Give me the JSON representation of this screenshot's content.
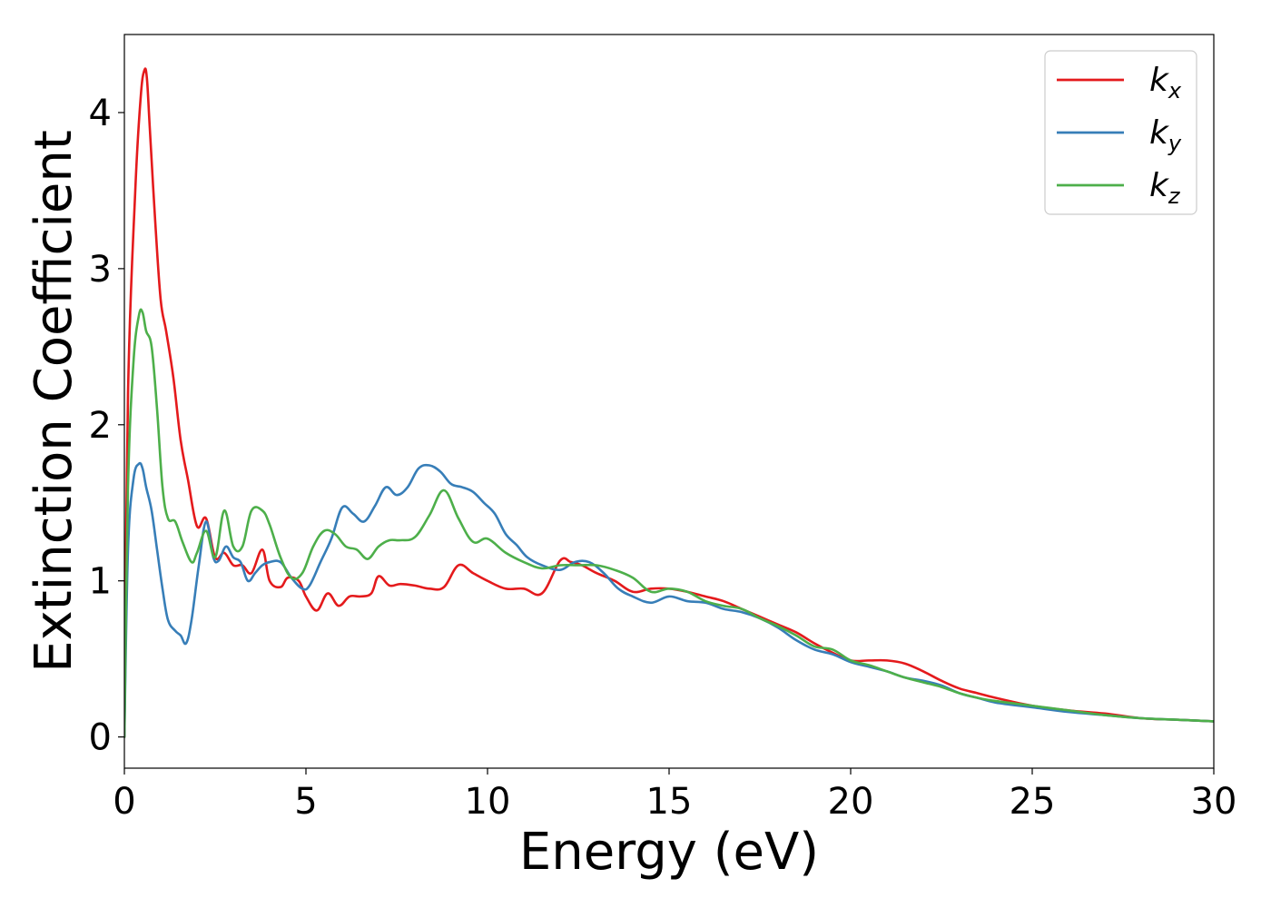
{
  "chart_data": {
    "type": "line",
    "xlabel": "Energy (eV)",
    "ylabel": "Extinction Coefficient",
    "xlim": [
      0,
      30
    ],
    "ylim": [
      -0.2,
      4.5
    ],
    "xticks": [
      "0",
      "5",
      "10",
      "15",
      "20",
      "25",
      "30"
    ],
    "yticks": [
      "0",
      "1",
      "2",
      "3",
      "4"
    ],
    "grid": false,
    "legend_position": "top-right",
    "series": [
      {
        "name": "k",
        "subscript": "x",
        "color": "#e41a1c",
        "x": [
          0,
          0.1,
          0.3,
          0.45,
          0.55,
          0.62,
          0.7,
          0.85,
          1.0,
          1.15,
          1.35,
          1.55,
          1.75,
          2.0,
          2.25,
          2.5,
          2.75,
          3.0,
          3.25,
          3.5,
          3.8,
          4.0,
          4.3,
          4.5,
          4.8,
          5.0,
          5.3,
          5.6,
          5.9,
          6.2,
          6.5,
          6.8,
          7.0,
          7.3,
          7.6,
          8.0,
          8.4,
          8.8,
          9.2,
          9.6,
          10.0,
          10.5,
          11.0,
          11.5,
          12.0,
          12.3,
          12.6,
          13.0,
          13.5,
          14.0,
          14.5,
          15.0,
          15.5,
          16.0,
          16.5,
          17.0,
          17.5,
          18.0,
          18.5,
          19.0,
          19.5,
          20.0,
          20.5,
          21.0,
          21.5,
          22.0,
          22.5,
          23.0,
          23.5,
          24.0,
          25.0,
          26.0,
          27.0,
          28.0,
          29.0,
          30.0
        ],
        "y": [
          0,
          2.2,
          3.5,
          4.1,
          4.27,
          4.22,
          3.9,
          3.3,
          2.8,
          2.6,
          2.3,
          1.9,
          1.65,
          1.35,
          1.4,
          1.15,
          1.18,
          1.1,
          1.1,
          1.05,
          1.2,
          1.0,
          0.96,
          1.02,
          1.0,
          0.9,
          0.81,
          0.92,
          0.84,
          0.9,
          0.9,
          0.92,
          1.03,
          0.97,
          0.98,
          0.97,
          0.95,
          0.96,
          1.1,
          1.05,
          1.0,
          0.95,
          0.95,
          0.92,
          1.13,
          1.12,
          1.1,
          1.05,
          1.0,
          0.93,
          0.95,
          0.95,
          0.93,
          0.9,
          0.87,
          0.82,
          0.77,
          0.72,
          0.67,
          0.6,
          0.54,
          0.49,
          0.49,
          0.49,
          0.47,
          0.42,
          0.36,
          0.31,
          0.28,
          0.25,
          0.2,
          0.17,
          0.15,
          0.12,
          0.11,
          0.1
        ]
      },
      {
        "name": "k",
        "subscript": "y",
        "color": "#377eb8",
        "x": [
          0,
          0.1,
          0.25,
          0.4,
          0.5,
          0.6,
          0.75,
          0.9,
          1.05,
          1.2,
          1.4,
          1.55,
          1.7,
          1.85,
          2.05,
          2.25,
          2.45,
          2.6,
          2.8,
          3.0,
          3.2,
          3.4,
          3.6,
          3.8,
          4.0,
          4.3,
          4.6,
          4.9,
          5.1,
          5.4,
          5.7,
          6.0,
          6.3,
          6.6,
          6.9,
          7.2,
          7.5,
          7.8,
          8.1,
          8.4,
          8.7,
          9.0,
          9.3,
          9.6,
          9.9,
          10.2,
          10.5,
          10.8,
          11.1,
          11.5,
          12.0,
          12.4,
          12.8,
          13.2,
          13.6,
          14.0,
          14.5,
          15.0,
          15.5,
          16.0,
          16.5,
          17.0,
          17.5,
          18.0,
          18.5,
          19.0,
          19.5,
          20.0,
          20.5,
          21.0,
          21.5,
          22.0,
          22.5,
          23.0,
          23.5,
          24.0,
          25.0,
          26.0,
          27.0,
          28.0,
          29.0,
          30.0
        ],
        "y": [
          0,
          1.2,
          1.65,
          1.75,
          1.72,
          1.6,
          1.45,
          1.2,
          0.95,
          0.75,
          0.68,
          0.65,
          0.6,
          0.75,
          1.1,
          1.38,
          1.15,
          1.13,
          1.22,
          1.15,
          1.12,
          1.0,
          1.05,
          1.1,
          1.12,
          1.12,
          1.02,
          0.95,
          0.97,
          1.12,
          1.27,
          1.47,
          1.43,
          1.38,
          1.48,
          1.6,
          1.55,
          1.6,
          1.72,
          1.74,
          1.7,
          1.62,
          1.6,
          1.57,
          1.5,
          1.43,
          1.3,
          1.23,
          1.15,
          1.1,
          1.07,
          1.12,
          1.12,
          1.05,
          0.95,
          0.9,
          0.86,
          0.9,
          0.87,
          0.86,
          0.82,
          0.8,
          0.76,
          0.7,
          0.62,
          0.56,
          0.53,
          0.48,
          0.45,
          0.42,
          0.38,
          0.36,
          0.33,
          0.28,
          0.25,
          0.22,
          0.19,
          0.16,
          0.14,
          0.12,
          0.11,
          0.1
        ]
      },
      {
        "name": "k",
        "subscript": "z",
        "color": "#4daf4a",
        "x": [
          0,
          0.1,
          0.25,
          0.4,
          0.5,
          0.6,
          0.75,
          0.9,
          1.05,
          1.2,
          1.4,
          1.6,
          1.85,
          2.0,
          2.25,
          2.5,
          2.75,
          3.0,
          3.25,
          3.5,
          3.8,
          4.0,
          4.3,
          4.6,
          4.9,
          5.2,
          5.5,
          5.8,
          6.1,
          6.4,
          6.7,
          7.0,
          7.3,
          7.6,
          8.0,
          8.4,
          8.8,
          9.2,
          9.6,
          10.0,
          10.5,
          11.0,
          11.5,
          12.0,
          12.5,
          13.0,
          13.5,
          14.0,
          14.5,
          15.0,
          15.5,
          16.0,
          16.5,
          17.0,
          17.5,
          18.0,
          18.5,
          19.0,
          19.5,
          20.0,
          20.5,
          21.0,
          21.5,
          22.0,
          22.5,
          23.0,
          23.5,
          24.0,
          25.0,
          26.0,
          27.0,
          28.0,
          29.0,
          30.0
        ],
        "y": [
          0,
          1.6,
          2.4,
          2.7,
          2.72,
          2.6,
          2.5,
          2.1,
          1.6,
          1.4,
          1.38,
          1.25,
          1.12,
          1.18,
          1.32,
          1.15,
          1.45,
          1.22,
          1.22,
          1.45,
          1.45,
          1.36,
          1.15,
          1.02,
          1.05,
          1.22,
          1.32,
          1.3,
          1.22,
          1.2,
          1.14,
          1.22,
          1.26,
          1.26,
          1.28,
          1.42,
          1.58,
          1.4,
          1.25,
          1.27,
          1.18,
          1.12,
          1.08,
          1.1,
          1.1,
          1.1,
          1.07,
          1.02,
          0.93,
          0.95,
          0.93,
          0.87,
          0.84,
          0.82,
          0.76,
          0.71,
          0.65,
          0.58,
          0.56,
          0.49,
          0.46,
          0.42,
          0.38,
          0.35,
          0.32,
          0.28,
          0.25,
          0.23,
          0.2,
          0.17,
          0.14,
          0.12,
          0.11,
          0.1
        ]
      }
    ]
  }
}
